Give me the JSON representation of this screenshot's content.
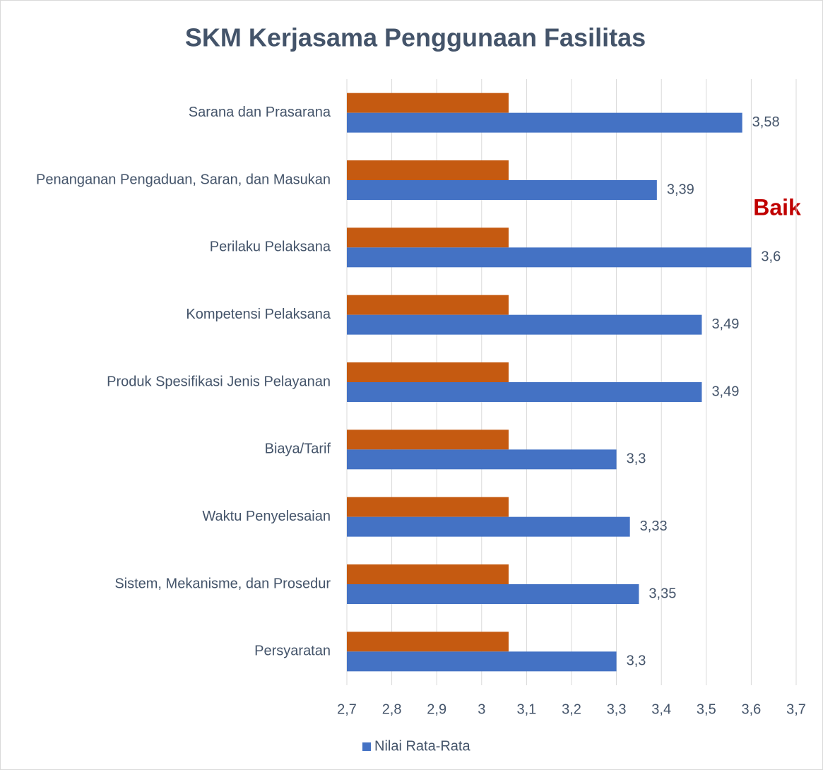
{
  "chart_data": {
    "type": "bar",
    "orientation": "horizontal",
    "title": "SKM Kerjasama Penggunaan Fasilitas",
    "annotation": "Baik",
    "categories": [
      "Sarana dan Prasarana",
      "Penanganan Pengaduan, Saran, dan Masukan",
      "Perilaku Pelaksana",
      "Kompetensi Pelaksana",
      "Produk Spesifikasi Jenis Pelayanan",
      "Biaya/Tarif",
      "Waktu Penyelesaian",
      "Sistem, Mekanisme, dan Prosedur",
      "Persyaratan"
    ],
    "series": [
      {
        "color": "#c55a11",
        "values": [
          3.06,
          3.06,
          3.06,
          3.06,
          3.06,
          3.06,
          3.06,
          3.06,
          3.06
        ]
      },
      {
        "name": "Nilai Rata-Rata",
        "color": "#4472c4",
        "values": [
          3.58,
          3.39,
          3.6,
          3.49,
          3.49,
          3.3,
          3.33,
          3.35,
          3.3
        ],
        "value_labels": [
          "3,58",
          "3,39",
          "3,6",
          "3,49",
          "3,49",
          "3,3",
          "3,33",
          "3,35",
          "3,3"
        ]
      }
    ],
    "xlim": [
      2.7,
      3.7
    ],
    "xticks": [
      {
        "value": 2.7,
        "label": "2,7"
      },
      {
        "value": 2.8,
        "label": "2,8"
      },
      {
        "value": 2.9,
        "label": "2,9"
      },
      3,
      {
        "value": 3.1,
        "label": "3,1"
      },
      {
        "value": 3.2,
        "label": "3,2"
      },
      {
        "value": 3.3,
        "label": "3,3"
      },
      {
        "value": 3.4,
        "label": "3,4"
      },
      {
        "value": 3.5,
        "label": "3,5"
      },
      {
        "value": 3.6,
        "label": "3,6"
      },
      {
        "value": 3.7,
        "label": "3,7"
      }
    ],
    "grid": true,
    "legend": "bottom"
  }
}
